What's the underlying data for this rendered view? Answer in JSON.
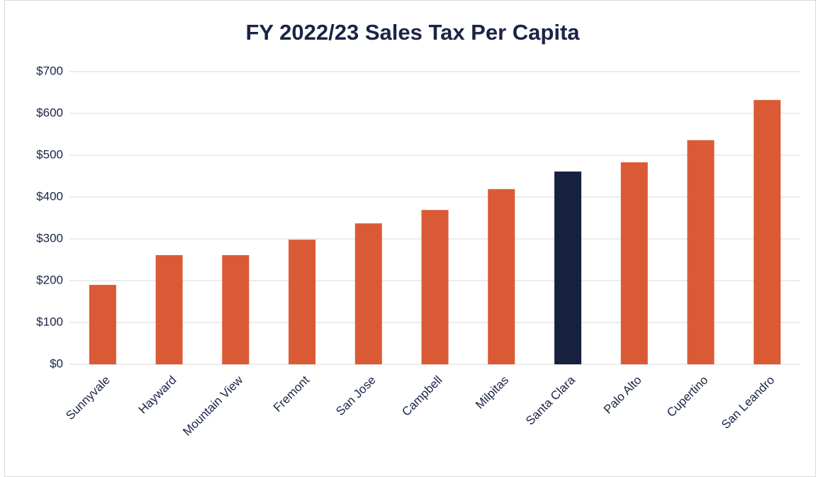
{
  "chart_data": {
    "type": "bar",
    "title": "FY 2022/23 Sales Tax Per Capita",
    "categories": [
      "Sunnyvale",
      "Hayward",
      "Mountain View",
      "Fremont",
      "San Jose",
      "Campbell",
      "Milpitas",
      "Santa Clara",
      "Palo Alto",
      "Cupertino",
      "San Leandro"
    ],
    "values": [
      190,
      261,
      261,
      298,
      337,
      369,
      419,
      461,
      483,
      536,
      632
    ],
    "colors": [
      "#da5a36",
      "#da5a36",
      "#da5a36",
      "#da5a36",
      "#da5a36",
      "#da5a36",
      "#da5a36",
      "#16213f",
      "#da5a36",
      "#da5a36",
      "#da5a36"
    ],
    "ylim": [
      0,
      700
    ],
    "yticks": [
      {
        "value": 0,
        "label": "$0"
      },
      {
        "value": 100,
        "label": "$100"
      },
      {
        "value": 200,
        "label": "$200"
      },
      {
        "value": 300,
        "label": "$300"
      },
      {
        "value": 400,
        "label": "$400"
      },
      {
        "value": 500,
        "label": "$500"
      },
      {
        "value": 600,
        "label": "$600"
      },
      {
        "value": 700,
        "label": "$700"
      }
    ],
    "grid": true
  }
}
